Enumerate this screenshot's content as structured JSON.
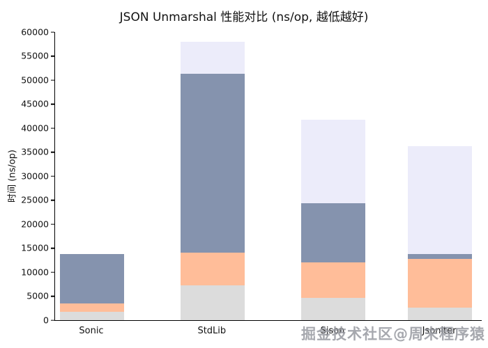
{
  "watermark": "掘金技术社区@周末程序猿",
  "chart_data": {
    "type": "bar",
    "stacked": true,
    "title": "JSON Unmarshal 性能对比 (ns/op, 越低越好)",
    "xlabel": "",
    "ylabel": "时间 (ns/op)",
    "categories": [
      "Sonic",
      "StdLib",
      "Sjson",
      "Jsoniter"
    ],
    "series": [
      {
        "name": "lightgray-segment",
        "color": "#dcdcdc",
        "values": [
          1800,
          7300,
          4600,
          2600
        ]
      },
      {
        "name": "salmon-segment",
        "color": "#ffbd99",
        "values": [
          1700,
          6700,
          7400,
          10200
        ]
      },
      {
        "name": "slate-segment",
        "color": "#8593ae",
        "values": [
          10300,
          37300,
          12400,
          1000
        ]
      },
      {
        "name": "lavender-segment",
        "color": "#ececfa",
        "values": [
          0,
          6700,
          17400,
          22400
        ]
      }
    ],
    "totals": [
      13800,
      58000,
      41800,
      36200
    ],
    "ylim": [
      0,
      60000
    ],
    "yticks": [
      0,
      5000,
      10000,
      15000,
      20000,
      25000,
      30000,
      35000,
      40000,
      45000,
      50000,
      55000,
      60000
    ],
    "grid": false,
    "legend": "none"
  }
}
